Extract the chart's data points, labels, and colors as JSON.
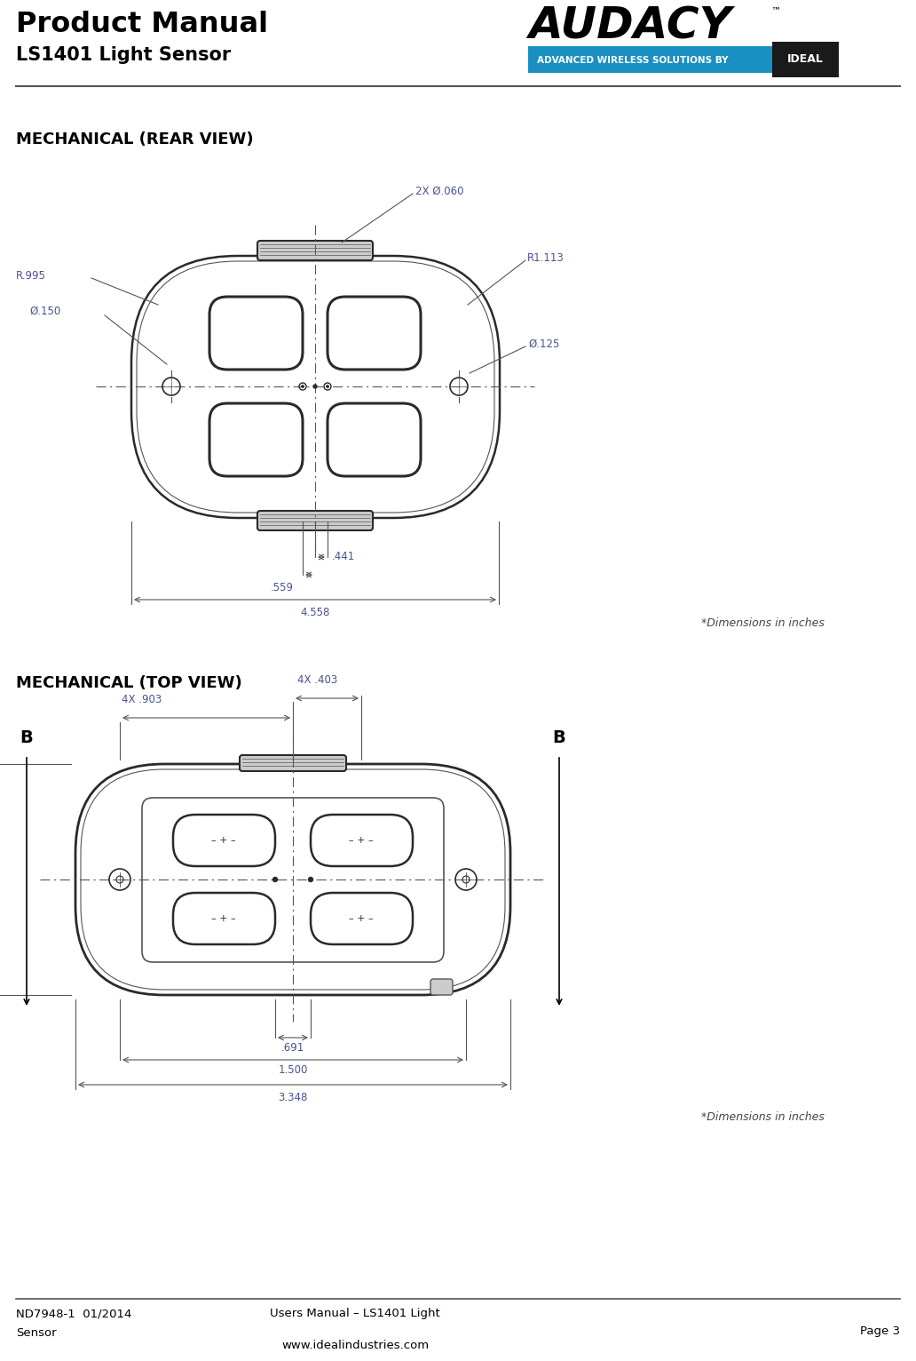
{
  "title_line1": "Product Manual",
  "title_line2": "LS1401 Light Sensor",
  "section1_title": "MECHANICAL (REAR VIEW)",
  "section2_title": "MECHANICAL (TOP VIEW)",
  "dim_note": "*Dimensions in inches",
  "footer_left_line1": "ND7948-1  01/2014",
  "footer_left_line2": "Sensor",
  "footer_center_line1": "Users Manual – LS1401 Light",
  "footer_center_line2": "www.idealindustries.com",
  "footer_right": "Page 3",
  "bg_color": "#ffffff",
  "text_color": "#000000",
  "dim_color": "#4a5291",
  "draw_color": "#2a2a2a",
  "draw_color2": "#555555"
}
